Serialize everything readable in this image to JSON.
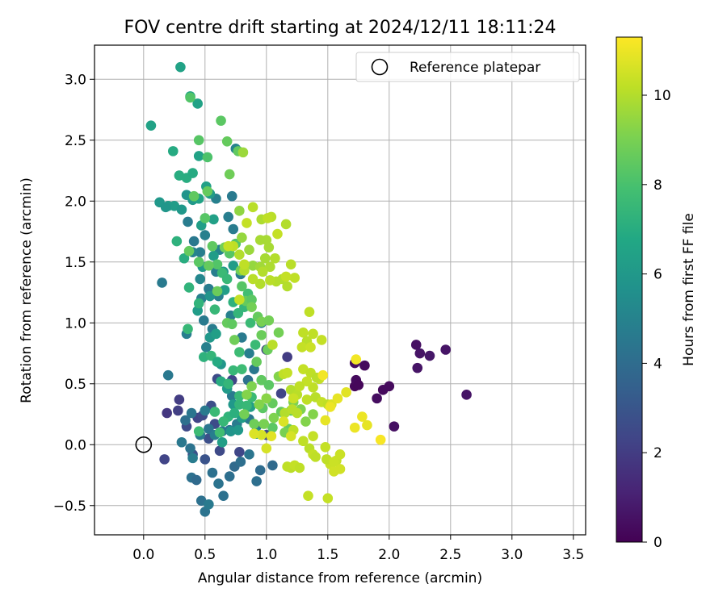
{
  "chart_data": {
    "type": "scatter",
    "title": "FOV centre drift starting at 2024/12/11 18:11:24",
    "xlabel": "Angular distance from reference (arcmin)",
    "ylabel": "Rotation from reference (arcmin)",
    "xlim": [
      -0.4,
      3.6
    ],
    "ylim": [
      -0.74,
      3.28
    ],
    "x_ticks": [
      0.0,
      0.5,
      1.0,
      1.5,
      2.0,
      2.5,
      3.0,
      3.5
    ],
    "x_tick_labels": [
      "0.0",
      "0.5",
      "1.0",
      "1.5",
      "2.0",
      "2.5",
      "3.0",
      "3.5"
    ],
    "y_ticks": [
      -0.5,
      0.0,
      0.5,
      1.0,
      1.5,
      2.0,
      2.5,
      3.0
    ],
    "y_tick_labels": [
      "−0.5",
      "0.0",
      "0.5",
      "1.0",
      "1.5",
      "2.0",
      "2.5",
      "3.0"
    ],
    "grid": true,
    "legend": {
      "position": "top-right",
      "entries": [
        {
          "label": "Reference platepar",
          "marker": "open-circle",
          "x": 0.0,
          "y": 0.0
        }
      ]
    },
    "colorbar": {
      "label": "Hours from first FF file",
      "colormap": "viridis",
      "range": [
        0,
        11.3
      ],
      "ticks": [
        0,
        2,
        4,
        6,
        8,
        10
      ],
      "tick_labels": [
        "0",
        "2",
        "4",
        "6",
        "8",
        "10"
      ]
    },
    "points": [
      [
        1.72,
        0.48,
        0.2
      ],
      [
        1.73,
        0.53,
        0.3
      ],
      [
        1.75,
        0.49,
        0.2
      ],
      [
        1.8,
        0.65,
        0.3
      ],
      [
        1.72,
        0.67,
        0.4
      ],
      [
        1.9,
        0.38,
        0.4
      ],
      [
        1.95,
        0.45,
        0.3
      ],
      [
        2.0,
        0.48,
        0.3
      ],
      [
        2.04,
        0.15,
        0.5
      ],
      [
        2.22,
        0.82,
        0.5
      ],
      [
        2.23,
        0.63,
        0.6
      ],
      [
        2.25,
        0.75,
        0.6
      ],
      [
        2.33,
        0.73,
        0.7
      ],
      [
        2.46,
        0.78,
        0.6
      ],
      [
        2.63,
        0.41,
        0.6
      ],
      [
        0.19,
        0.26,
        1.8
      ],
      [
        0.29,
        0.37,
        2.0
      ],
      [
        0.28,
        0.28,
        2.1
      ],
      [
        0.17,
        -0.12,
        2.3
      ],
      [
        0.35,
        0.15,
        2.5
      ],
      [
        0.44,
        0.22,
        2.3
      ],
      [
        0.48,
        0.24,
        2.5
      ],
      [
        0.55,
        0.32,
        2.7
      ],
      [
        0.58,
        0.17,
        2.6
      ],
      [
        0.62,
        -0.05,
        2.5
      ],
      [
        0.53,
        0.05,
        2.7
      ],
      [
        0.6,
        0.54,
        2.6
      ],
      [
        0.78,
        -0.06,
        2.4
      ],
      [
        1.17,
        0.72,
        2.0
      ],
      [
        1.0,
        0.78,
        2.3
      ],
      [
        1.12,
        0.42,
        2.3
      ],
      [
        1.0,
        0.08,
        2.5
      ],
      [
        0.72,
        0.53,
        2.3
      ],
      [
        0.4,
        -0.08,
        2.8
      ],
      [
        0.5,
        -0.12,
        2.9
      ],
      [
        0.2,
        0.57,
        4.5
      ],
      [
        0.34,
        0.2,
        4.1
      ],
      [
        0.31,
        0.02,
        4.5
      ],
      [
        0.38,
        -0.03,
        4.3
      ],
      [
        0.39,
        -0.27,
        4.2
      ],
      [
        0.43,
        -0.29,
        3.9
      ],
      [
        0.4,
        -0.11,
        4.7
      ],
      [
        0.47,
        -0.46,
        4.2
      ],
      [
        0.5,
        -0.55,
        4.3
      ],
      [
        0.53,
        -0.49,
        4.6
      ],
      [
        0.56,
        -0.23,
        4.2
      ],
      [
        0.61,
        -0.32,
        4.3
      ],
      [
        0.65,
        -0.42,
        4.2
      ],
      [
        0.7,
        -0.26,
        4.1
      ],
      [
        0.74,
        -0.18,
        3.9
      ],
      [
        0.79,
        -0.14,
        4.1
      ],
      [
        0.86,
        -0.08,
        4.4
      ],
      [
        0.92,
        -0.3,
        4.1
      ],
      [
        0.95,
        -0.21,
        4.0
      ],
      [
        1.05,
        -0.17,
        3.9
      ],
      [
        0.39,
        0.26,
        4.4
      ],
      [
        0.46,
        0.08,
        4.6
      ],
      [
        0.5,
        0.28,
        4.6
      ],
      [
        0.53,
        0.13,
        4.4
      ],
      [
        0.58,
        0.08,
        4.8
      ],
      [
        0.64,
        0.11,
        4.5
      ],
      [
        0.7,
        0.12,
        4.4
      ],
      [
        0.76,
        0.17,
        4.7
      ],
      [
        0.86,
        0.21,
        4.5
      ],
      [
        0.92,
        0.15,
        4.4
      ],
      [
        0.72,
        0.4,
        4.6
      ],
      [
        0.85,
        0.53,
        4.2
      ],
      [
        0.9,
        0.62,
        4.5
      ],
      [
        0.35,
        0.91,
        4.8
      ],
      [
        0.49,
        1.02,
        4.6
      ],
      [
        0.56,
        0.95,
        4.7
      ],
      [
        0.61,
        1.22,
        4.9
      ],
      [
        0.71,
        1.06,
        4.9
      ],
      [
        0.8,
        0.88,
        4.6
      ],
      [
        0.86,
        0.75,
        4.8
      ],
      [
        0.15,
        1.33,
        4.6
      ],
      [
        0.36,
        1.83,
        4.7
      ],
      [
        0.41,
        1.67,
        4.5
      ],
      [
        0.46,
        1.58,
        4.8
      ],
      [
        0.5,
        1.72,
        4.9
      ],
      [
        0.59,
        1.42,
        4.8
      ],
      [
        0.62,
        1.6,
        5.0
      ],
      [
        0.69,
        1.87,
        4.8
      ],
      [
        0.72,
        2.04,
        4.6
      ],
      [
        0.59,
        2.02,
        4.9
      ],
      [
        0.73,
        1.77,
        4.7
      ],
      [
        0.47,
        1.2,
        4.9
      ],
      [
        0.53,
        1.28,
        4.7
      ],
      [
        0.51,
        0.8,
        4.9
      ],
      [
        0.79,
        1.4,
        4.7
      ],
      [
        0.75,
        2.43,
        5.0
      ],
      [
        0.96,
        1.0,
        4.9
      ],
      [
        0.4,
        1.58,
        5.0
      ],
      [
        0.46,
        1.36,
        5.2
      ],
      [
        0.13,
        1.99,
        6.0
      ],
      [
        0.2,
        1.96,
        6.2
      ],
      [
        0.25,
        1.96,
        6.2
      ],
      [
        0.31,
        1.93,
        6.0
      ],
      [
        0.18,
        1.95,
        5.9
      ],
      [
        0.35,
        2.05,
        5.8
      ],
      [
        0.4,
        2.01,
        6.0
      ],
      [
        0.45,
        2.02,
        6.5
      ],
      [
        0.51,
        2.12,
        6.4
      ],
      [
        0.54,
        2.06,
        6.2
      ],
      [
        0.47,
        1.8,
        6.3
      ],
      [
        0.57,
        1.85,
        6.4
      ],
      [
        0.48,
        1.46,
        6.1
      ],
      [
        0.54,
        1.22,
        5.8
      ],
      [
        0.57,
        1.55,
        6.2
      ],
      [
        0.65,
        1.42,
        6.0
      ],
      [
        0.73,
        1.47,
        6.2
      ],
      [
        0.66,
        1.27,
        6.3
      ],
      [
        0.44,
        1.1,
        6.2
      ],
      [
        0.54,
        0.88,
        6.0
      ],
      [
        0.59,
        0.91,
        6.3
      ],
      [
        0.63,
        0.66,
        5.9
      ],
      [
        0.68,
        0.46,
        6.1
      ],
      [
        0.73,
        0.33,
        6.0
      ],
      [
        0.8,
        0.22,
        6.2
      ],
      [
        0.87,
        0.31,
        6.3
      ],
      [
        0.92,
        0.09,
        6.1
      ],
      [
        0.64,
        0.02,
        6.3
      ],
      [
        0.71,
        0.11,
        5.8
      ],
      [
        0.77,
        0.12,
        6.0
      ],
      [
        0.3,
        3.1,
        6.5
      ],
      [
        0.06,
        2.62,
        6.5
      ],
      [
        0.24,
        2.41,
        6.9
      ],
      [
        0.38,
        2.86,
        6.6
      ],
      [
        0.44,
        2.8,
        6.5
      ],
      [
        0.45,
        2.37,
        6.5
      ],
      [
        0.29,
        2.21,
        7.0
      ],
      [
        0.35,
        2.19,
        7.0
      ],
      [
        0.4,
        2.23,
        6.9
      ],
      [
        0.27,
        1.67,
        7.2
      ],
      [
        0.33,
        1.53,
        7.0
      ],
      [
        0.37,
        1.29,
        7.3
      ],
      [
        0.36,
        0.95,
        7.5
      ],
      [
        0.45,
        1.16,
        7.3
      ],
      [
        0.49,
        0.72,
        7.2
      ],
      [
        0.55,
        0.73,
        7.4
      ],
      [
        0.6,
        0.68,
        6.9
      ],
      [
        0.63,
        0.52,
        7.0
      ],
      [
        0.69,
        0.5,
        7.4
      ],
      [
        0.69,
        0.23,
        7.3
      ],
      [
        0.74,
        0.26,
        7.1
      ],
      [
        0.78,
        0.33,
        7.4
      ],
      [
        0.84,
        0.32,
        7.5
      ],
      [
        0.88,
        0.39,
        7.6
      ],
      [
        0.58,
        1.11,
        7.5
      ],
      [
        0.64,
        1.41,
        7.6
      ],
      [
        0.68,
        1.36,
        7.5
      ],
      [
        0.73,
        1.17,
        7.2
      ],
      [
        0.77,
        1.08,
        7.4
      ],
      [
        0.82,
        1.13,
        7.4
      ],
      [
        0.85,
        1.24,
        7.8
      ],
      [
        0.87,
        1.0,
        7.6
      ],
      [
        0.91,
        0.82,
        7.6
      ],
      [
        0.78,
        0.76,
        7.7
      ],
      [
        0.73,
        0.61,
        7.5
      ],
      [
        0.8,
        0.62,
        7.7
      ],
      [
        0.78,
        0.4,
        7.5
      ],
      [
        0.58,
        0.27,
        7.6
      ],
      [
        0.62,
        0.1,
        7.8
      ],
      [
        0.65,
        0.19,
        7.5
      ],
      [
        0.45,
        0.11,
        7.7
      ],
      [
        0.38,
        2.85,
        8.2
      ],
      [
        0.45,
        2.5,
        8.3
      ],
      [
        0.52,
        2.36,
        8.1
      ],
      [
        0.63,
        2.66,
        8.4
      ],
      [
        0.68,
        2.49,
        8.6
      ],
      [
        0.77,
        2.41,
        8.5
      ],
      [
        0.41,
        2.04,
        8.5
      ],
      [
        0.5,
        1.86,
        8.3
      ],
      [
        0.56,
        1.63,
        8.5
      ],
      [
        0.6,
        1.48,
        8.2
      ],
      [
        0.7,
        1.57,
        8.3
      ],
      [
        0.75,
        1.65,
        8.2
      ],
      [
        0.8,
        1.3,
        8.3
      ],
      [
        0.83,
        1.18,
        8.6
      ],
      [
        0.88,
        1.19,
        8.4
      ],
      [
        0.93,
        1.05,
        8.6
      ],
      [
        0.96,
        0.9,
        8.7
      ],
      [
        1.01,
        0.78,
        8.7
      ],
      [
        0.92,
        0.68,
        8.6
      ],
      [
        0.96,
        0.53,
        8.5
      ],
      [
        1.02,
        0.49,
        8.4
      ],
      [
        1.05,
        0.34,
        8.6
      ],
      [
        0.97,
        0.3,
        8.4
      ],
      [
        1.05,
        0.14,
        8.4
      ],
      [
        1.12,
        0.27,
        8.6
      ],
      [
        1.2,
        0.28,
        8.5
      ],
      [
        1.18,
        0.13,
        8.6
      ],
      [
        0.45,
        1.5,
        8.4
      ],
      [
        0.53,
        1.47,
        8.6
      ],
      [
        0.6,
        1.26,
        8.7
      ],
      [
        0.68,
        1.0,
        8.6
      ],
      [
        0.74,
        0.86,
        8.8
      ],
      [
        0.72,
        0.99,
        8.5
      ],
      [
        0.37,
        1.59,
        8.6
      ],
      [
        0.52,
        2.08,
        8.6
      ],
      [
        0.7,
        2.22,
        8.8
      ],
      [
        0.66,
        1.62,
        8.9
      ],
      [
        0.79,
        1.43,
        8.9
      ],
      [
        0.88,
        1.13,
        8.9
      ],
      [
        0.96,
        1.01,
        9.0
      ],
      [
        1.02,
        1.02,
        8.9
      ],
      [
        1.1,
        0.92,
        8.9
      ],
      [
        0.82,
        0.25,
        8.9
      ],
      [
        0.9,
        0.17,
        8.8
      ],
      [
        0.98,
        0.17,
        9.0
      ],
      [
        1.06,
        0.22,
        9.1
      ],
      [
        1.15,
        0.1,
        9.0
      ],
      [
        1.22,
        0.35,
        9.1
      ],
      [
        1.28,
        0.29,
        9.1
      ],
      [
        1.32,
        0.19,
        9.2
      ],
      [
        1.38,
        0.25,
        9.2
      ],
      [
        0.84,
        0.41,
        9.2
      ],
      [
        0.88,
        0.48,
        9.1
      ],
      [
        0.94,
        0.33,
        9.2
      ],
      [
        1.0,
        0.38,
        9.3
      ],
      [
        1.1,
        0.56,
        9.2
      ],
      [
        0.81,
        2.4,
        9.6
      ],
      [
        0.78,
        1.92,
        9.4
      ],
      [
        0.8,
        1.7,
        9.5
      ],
      [
        0.86,
        1.6,
        9.6
      ],
      [
        0.89,
        1.47,
        9.5
      ],
      [
        0.95,
        1.46,
        9.7
      ],
      [
        0.99,
        1.53,
        9.8
      ],
      [
        1.03,
        1.46,
        9.9
      ],
      [
        0.96,
        1.85,
        9.9
      ],
      [
        0.95,
        1.68,
        9.8
      ],
      [
        1.0,
        1.68,
        9.8
      ],
      [
        1.02,
        1.62,
        9.8
      ],
      [
        1.07,
        1.53,
        10.0
      ],
      [
        0.97,
        1.42,
        10.0
      ],
      [
        1.08,
        1.34,
        10.0
      ],
      [
        0.95,
        1.32,
        10.0
      ],
      [
        0.89,
        1.36,
        10.1
      ],
      [
        0.82,
        1.43,
        10.0
      ],
      [
        0.78,
        1.56,
        10.0
      ],
      [
        0.73,
        1.63,
        10.2
      ],
      [
        0.69,
        1.63,
        10.3
      ],
      [
        0.78,
        1.19,
        10.3
      ],
      [
        0.82,
        1.48,
        10.2
      ],
      [
        1.16,
        1.81,
        10.0
      ],
      [
        1.04,
        1.87,
        10.1
      ],
      [
        1.01,
        1.86,
        10.2
      ],
      [
        0.89,
        1.95,
        10.1
      ],
      [
        0.84,
        1.82,
        10.3
      ],
      [
        1.09,
        1.73,
        10.3
      ],
      [
        1.13,
        1.36,
        10.0
      ],
      [
        1.17,
        1.3,
        10.0
      ],
      [
        1.2,
        1.48,
        10.1
      ],
      [
        1.23,
        1.37,
        10.2
      ],
      [
        1.16,
        1.38,
        10.3
      ],
      [
        1.03,
        1.35,
        10.1
      ],
      [
        1.2,
        0.45,
        10.0
      ],
      [
        1.25,
        0.41,
        10.1
      ],
      [
        1.33,
        0.37,
        10.2
      ],
      [
        1.4,
        0.39,
        10.1
      ],
      [
        1.45,
        0.35,
        10.3
      ],
      [
        1.5,
        0.33,
        10.2
      ],
      [
        1.38,
        0.47,
        10.2
      ],
      [
        1.43,
        0.54,
        10.3
      ],
      [
        1.3,
        0.62,
        10.3
      ],
      [
        1.36,
        0.59,
        10.2
      ],
      [
        1.41,
        0.55,
        10.1
      ],
      [
        1.33,
        0.52,
        10.3
      ],
      [
        1.27,
        0.48,
        10.2
      ],
      [
        1.22,
        0.38,
        10.4
      ],
      [
        1.14,
        0.58,
        10.2
      ],
      [
        1.17,
        0.59,
        10.3
      ],
      [
        1.15,
        0.26,
        10.0
      ],
      [
        1.21,
        0.29,
        10.1
      ],
      [
        1.35,
        1.09,
        10.2
      ],
      [
        1.3,
        0.92,
        10.2
      ],
      [
        1.33,
        0.85,
        10.1
      ],
      [
        1.29,
        0.8,
        10.3
      ],
      [
        1.38,
        0.91,
        10.2
      ],
      [
        1.45,
        0.86,
        10.3
      ],
      [
        1.36,
        0.8,
        10.4
      ],
      [
        1.05,
        0.82,
        10.1
      ],
      [
        1.2,
        -0.19,
        10.1
      ],
      [
        1.17,
        -0.18,
        10.2
      ],
      [
        1.23,
        -0.17,
        10.3
      ],
      [
        1.27,
        -0.19,
        10.2
      ],
      [
        1.35,
        -0.03,
        10.1
      ],
      [
        1.38,
        -0.08,
        10.3
      ],
      [
        1.4,
        -0.1,
        10.2
      ],
      [
        1.48,
        -0.02,
        10.3
      ],
      [
        1.52,
        -0.16,
        10.4
      ],
      [
        1.55,
        -0.22,
        10.5
      ],
      [
        1.49,
        -0.12,
        10.2
      ],
      [
        1.57,
        -0.13,
        10.3
      ],
      [
        1.6,
        -0.08,
        10.4
      ],
      [
        1.6,
        -0.2,
        10.5
      ],
      [
        1.34,
        -0.42,
        10.3
      ],
      [
        1.5,
        -0.44,
        10.3
      ],
      [
        1.55,
        -0.14,
        10.4
      ],
      [
        1.38,
        0.07,
        10.3
      ],
      [
        1.3,
        0.03,
        10.2
      ],
      [
        1.22,
        0.12,
        10.2
      ],
      [
        1.25,
        0.26,
        10.1
      ],
      [
        1.48,
        0.2,
        10.9
      ],
      [
        1.53,
        0.33,
        10.7
      ],
      [
        1.58,
        0.38,
        10.9
      ],
      [
        1.65,
        0.43,
        10.8
      ],
      [
        1.78,
        0.23,
        11.0
      ],
      [
        1.82,
        0.16,
        10.9
      ],
      [
        1.72,
        0.14,
        11.0
      ],
      [
        1.93,
        0.04,
        11.2
      ],
      [
        1.73,
        0.7,
        11.1
      ],
      [
        1.46,
        0.57,
        11.1
      ],
      [
        1.52,
        0.31,
        11.0
      ],
      [
        1.2,
        0.07,
        10.6
      ],
      [
        1.14,
        0.19,
        10.7
      ],
      [
        1.04,
        0.07,
        10.8
      ],
      [
        1.0,
        -0.03,
        10.6
      ],
      [
        0.96,
        0.08,
        10.6
      ],
      [
        0.9,
        0.09,
        10.7
      ]
    ]
  }
}
